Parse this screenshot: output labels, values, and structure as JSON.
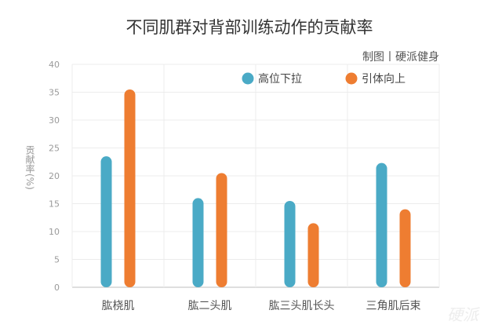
{
  "credit": "制图丨硬派健身",
  "watermark": "硬派",
  "colors": {
    "series1": "#4aaac6",
    "series2": "#ee7d31",
    "grid": "#ececec",
    "axis": "#bfbfbf"
  },
  "chart_data": {
    "type": "bar",
    "title": "不同肌群对背部训练动作的贡献率",
    "xlabel": "",
    "ylabel": "贡献率(%)",
    "ylim": [
      0,
      40
    ],
    "yticks": [
      0,
      5,
      10,
      15,
      20,
      25,
      30,
      35,
      40
    ],
    "categories": [
      "肱桡肌",
      "肱二头肌",
      "肱三头肌长头",
      "三角肌后束"
    ],
    "series": [
      {
        "name": "高位下拉",
        "values": [
          23.5,
          16,
          15.5,
          22.3
        ]
      },
      {
        "name": "引体向上",
        "values": [
          35.5,
          20.5,
          11.5,
          14
        ]
      }
    ],
    "grid": true,
    "legend_position": "top-right"
  }
}
